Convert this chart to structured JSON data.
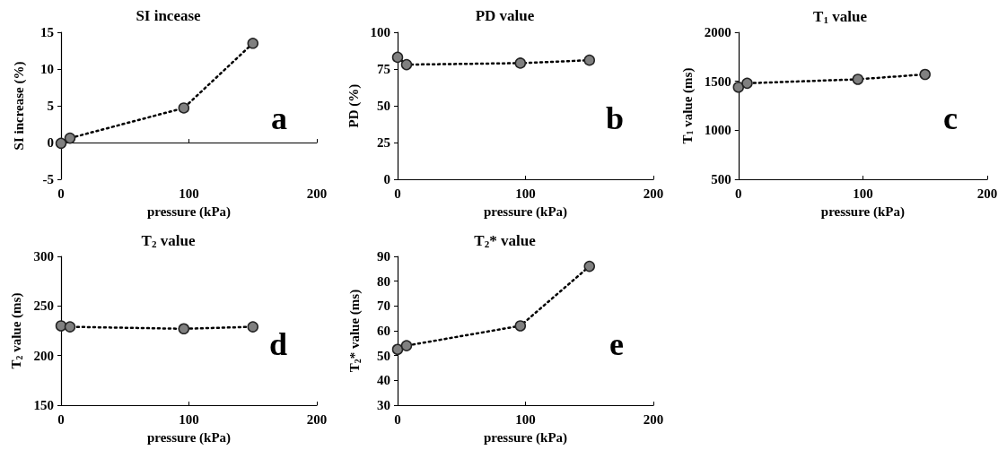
{
  "chart_data": [
    {
      "type": "line",
      "title": "SI incease",
      "xlabel": "pressure (kPa)",
      "ylabel": "SI increase (%)",
      "x": [
        0,
        7,
        96,
        150
      ],
      "series": [
        {
          "color": "#808080",
          "values": [
            -0.1,
            0.6,
            4.7,
            13.5
          ]
        }
      ],
      "xlim": [
        0,
        200
      ],
      "xticks": [
        0,
        100,
        200
      ],
      "ylim": [
        -5,
        15
      ],
      "yticks": [
        -5,
        0,
        5,
        10,
        15
      ],
      "marker": "circle",
      "line_style": "dotted",
      "annotations": [
        "a"
      ]
    },
    {
      "type": "line",
      "title": "PD value",
      "xlabel": "pressure (kPa)",
      "ylabel": "PD (%)",
      "x": [
        0,
        7,
        96,
        150
      ],
      "series": [
        {
          "color": "#808080",
          "values": [
            83,
            78,
            79,
            81
          ]
        }
      ],
      "xlim": [
        0,
        200
      ],
      "xticks": [
        0,
        100,
        200
      ],
      "ylim": [
        0,
        100
      ],
      "yticks": [
        0,
        25,
        50,
        75,
        100
      ],
      "marker": "circle",
      "line_style": "dotted",
      "annotations": [
        "b"
      ]
    },
    {
      "type": "line",
      "title": "T$_{1}$ value",
      "xlabel": "pressure (kPa)",
      "ylabel": "T$_{1}$ value (ms)",
      "x": [
        0,
        7,
        96,
        150
      ],
      "series": [
        {
          "color": "#808080",
          "values": [
            1440,
            1480,
            1520,
            1570
          ]
        }
      ],
      "xlim": [
        0,
        200
      ],
      "xticks": [
        0,
        100,
        200
      ],
      "ylim": [
        500,
        2000
      ],
      "yticks": [
        500,
        1000,
        1500,
        2000
      ],
      "marker": "circle",
      "line_style": "dotted",
      "annotations": [
        "c"
      ]
    },
    {
      "type": "line",
      "title": "T$_{2}$ value",
      "xlabel": "pressure (kPa)",
      "ylabel": "T$_{2}$ value (ms)",
      "x": [
        0,
        7,
        96,
        150
      ],
      "series": [
        {
          "color": "#808080",
          "values": [
            230,
            229,
            227,
            229
          ]
        }
      ],
      "xlim": [
        0,
        200
      ],
      "xticks": [
        0,
        100,
        200
      ],
      "ylim": [
        150,
        300
      ],
      "yticks": [
        150,
        200,
        250,
        300
      ],
      "marker": "circle",
      "line_style": "dotted",
      "annotations": [
        "d"
      ]
    },
    {
      "type": "line",
      "title": "T$_{2}$* value",
      "xlabel": "pressure (kPa)",
      "ylabel": "T$_{2}$* value (ms)",
      "x": [
        0,
        7,
        96,
        150
      ],
      "series": [
        {
          "color": "#808080",
          "values": [
            52.5,
            54,
            62,
            86
          ]
        }
      ],
      "xlim": [
        0,
        200
      ],
      "xticks": [
        0,
        100,
        200
      ],
      "ylim": [
        30,
        90
      ],
      "yticks": [
        30,
        40,
        50,
        60,
        70,
        80,
        90
      ],
      "marker": "circle",
      "line_style": "dotted",
      "annotations": [
        "e"
      ]
    }
  ]
}
